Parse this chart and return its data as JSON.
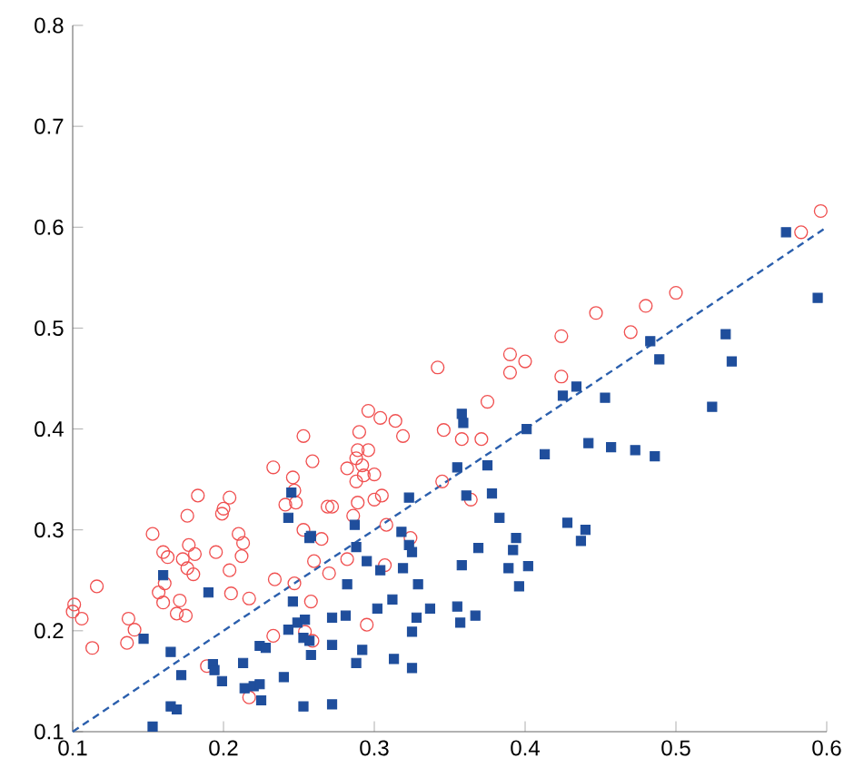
{
  "chart_data": {
    "type": "scatter",
    "xlim": [
      0.1,
      0.6
    ],
    "ylim": [
      0.1,
      0.8
    ],
    "xticks": [
      0.1,
      0.2,
      0.3,
      0.4,
      0.5,
      0.6
    ],
    "yticks": [
      0.1,
      0.2,
      0.3,
      0.4,
      0.5,
      0.6,
      0.7,
      0.8
    ],
    "grid": false,
    "series": [
      {
        "color": "#f05050",
        "marker": "circle",
        "x": [
          0.596,
          0.583,
          0.5,
          0.48,
          0.447,
          0.47,
          0.424,
          0.39,
          0.4,
          0.39,
          0.424,
          0.375,
          0.342,
          0.346,
          0.358,
          0.371,
          0.253,
          0.296,
          0.304,
          0.314,
          0.29,
          0.319,
          0.289,
          0.296,
          0.345,
          0.364,
          0.308,
          0.324,
          0.307,
          0.282,
          0.265,
          0.27,
          0.26,
          0.295,
          0.258,
          0.259,
          0.269,
          0.272,
          0.286,
          0.289,
          0.3,
          0.305,
          0.288,
          0.293,
          0.3,
          0.282,
          0.292,
          0.288,
          0.259,
          0.101,
          0.1,
          0.106,
          0.116,
          0.113,
          0.137,
          0.141,
          0.136,
          0.157,
          0.161,
          0.16,
          0.171,
          0.169,
          0.175,
          0.153,
          0.16,
          0.163,
          0.173,
          0.176,
          0.177,
          0.181,
          0.18,
          0.176,
          0.183,
          0.195,
          0.199,
          0.2,
          0.204,
          0.204,
          0.21,
          0.212,
          0.213,
          0.205,
          0.189,
          0.217,
          0.217,
          0.233,
          0.246,
          0.247,
          0.248,
          0.241,
          0.253,
          0.234,
          0.247,
          0.233,
          0.254
        ],
        "values": [
          0.616,
          0.595,
          0.535,
          0.522,
          0.515,
          0.496,
          0.492,
          0.474,
          0.467,
          0.456,
          0.452,
          0.427,
          0.461,
          0.399,
          0.39,
          0.39,
          0.393,
          0.418,
          0.411,
          0.408,
          0.397,
          0.393,
          0.379,
          0.379,
          0.348,
          0.33,
          0.305,
          0.292,
          0.265,
          0.271,
          0.291,
          0.257,
          0.269,
          0.206,
          0.229,
          0.19,
          0.323,
          0.323,
          0.314,
          0.327,
          0.33,
          0.334,
          0.348,
          0.354,
          0.355,
          0.361,
          0.364,
          0.371,
          0.368,
          0.226,
          0.219,
          0.212,
          0.244,
          0.183,
          0.212,
          0.201,
          0.188,
          0.238,
          0.247,
          0.228,
          0.23,
          0.217,
          0.215,
          0.296,
          0.278,
          0.273,
          0.271,
          0.262,
          0.285,
          0.276,
          0.256,
          0.314,
          0.334,
          0.278,
          0.316,
          0.321,
          0.332,
          0.26,
          0.296,
          0.274,
          0.287,
          0.237,
          0.165,
          0.134,
          0.232,
          0.362,
          0.352,
          0.339,
          0.327,
          0.325,
          0.3,
          0.251,
          0.247,
          0.195,
          0.199
        ]
      },
      {
        "color": "#1f4e9c",
        "marker": "square",
        "x": [
          0.573,
          0.594,
          0.533,
          0.537,
          0.524,
          0.483,
          0.489,
          0.434,
          0.425,
          0.453,
          0.401,
          0.358,
          0.359,
          0.413,
          0.442,
          0.457,
          0.473,
          0.486,
          0.428,
          0.44,
          0.437,
          0.355,
          0.375,
          0.323,
          0.361,
          0.378,
          0.383,
          0.394,
          0.392,
          0.369,
          0.318,
          0.323,
          0.325,
          0.287,
          0.288,
          0.258,
          0.295,
          0.304,
          0.319,
          0.358,
          0.389,
          0.402,
          0.396,
          0.282,
          0.329,
          0.312,
          0.302,
          0.337,
          0.355,
          0.367,
          0.357,
          0.328,
          0.281,
          0.272,
          0.325,
          0.272,
          0.292,
          0.288,
          0.313,
          0.325,
          0.272,
          0.258,
          0.147,
          0.153,
          0.16,
          0.165,
          0.172,
          0.165,
          0.169,
          0.19,
          0.193,
          0.194,
          0.199,
          0.213,
          0.214,
          0.22,
          0.224,
          0.225,
          0.224,
          0.228,
          0.24,
          0.243,
          0.245,
          0.257,
          0.246,
          0.243,
          0.249,
          0.254,
          0.253,
          0.257,
          0.253
        ],
        "values": [
          0.595,
          0.53,
          0.494,
          0.467,
          0.422,
          0.487,
          0.469,
          0.442,
          0.433,
          0.431,
          0.4,
          0.415,
          0.406,
          0.375,
          0.386,
          0.382,
          0.379,
          0.373,
          0.307,
          0.3,
          0.289,
          0.362,
          0.364,
          0.332,
          0.334,
          0.336,
          0.312,
          0.292,
          0.28,
          0.282,
          0.298,
          0.285,
          0.278,
          0.305,
          0.283,
          0.294,
          0.269,
          0.26,
          0.262,
          0.265,
          0.262,
          0.264,
          0.244,
          0.246,
          0.246,
          0.231,
          0.222,
          0.222,
          0.224,
          0.215,
          0.208,
          0.213,
          0.215,
          0.213,
          0.199,
          0.186,
          0.181,
          0.168,
          0.172,
          0.163,
          0.127,
          0.176,
          0.192,
          0.105,
          0.255,
          0.179,
          0.156,
          0.125,
          0.122,
          0.238,
          0.167,
          0.161,
          0.15,
          0.168,
          0.143,
          0.145,
          0.147,
          0.131,
          0.185,
          0.183,
          0.154,
          0.312,
          0.337,
          0.292,
          0.229,
          0.201,
          0.208,
          0.211,
          0.193,
          0.19,
          0.125
        ]
      },
      {
        "type": "line",
        "color": "#2b5fad",
        "line_style": "dashed",
        "marker": "none",
        "x": [
          0.1,
          0.6
        ],
        "values": [
          0.1,
          0.6
        ]
      }
    ]
  }
}
